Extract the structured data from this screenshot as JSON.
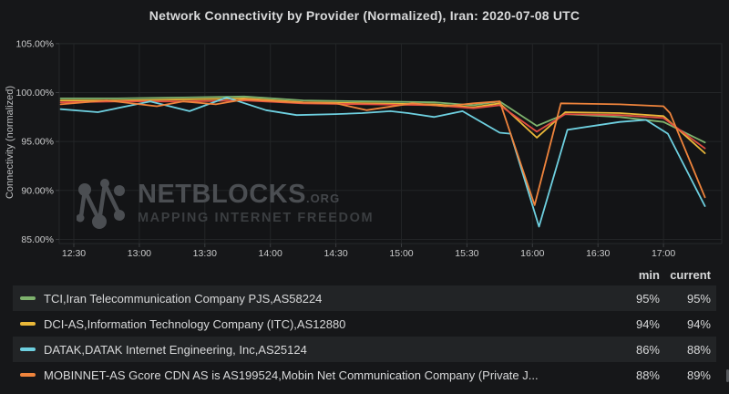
{
  "title": "Network Connectivity by Provider (Normalized), Iran: 2020-07-08 UTC",
  "watermark": {
    "brand": "NETBLOCKS",
    "suffix": ".ORG",
    "tagline": "MAPPING INTERNET FREEDOM",
    "color": "#4b4e52"
  },
  "colors": {
    "legend_header_accent": "#33a2e5",
    "series_green": "#7eb26d",
    "series_yellow": "#eab839",
    "series_red": "#e24d42",
    "series_light_blue": "#6ed0e0",
    "series_orange": "#ef843c"
  },
  "chart_data": {
    "type": "line",
    "title": "Network Connectivity by Provider (Normalized), Iran: 2020-07-08 UTC",
    "xlabel": "",
    "ylabel": "Connectivity (normalized)",
    "ylim": [
      85,
      105
    ],
    "grid": true,
    "legend_position": "bottom-table",
    "x_unit": "minutes since 00:00 UTC",
    "y_ticks": [
      {
        "value": 105,
        "label": "105.00%"
      },
      {
        "value": 100,
        "label": "100.00%"
      },
      {
        "value": 95,
        "label": "95.00%"
      },
      {
        "value": 90,
        "label": "90.00%"
      },
      {
        "value": 85,
        "label": "85.00%"
      }
    ],
    "x_ticks": [
      {
        "value": 750,
        "label": "12:30"
      },
      {
        "value": 780,
        "label": "13:00"
      },
      {
        "value": 810,
        "label": "13:30"
      },
      {
        "value": 840,
        "label": "14:00"
      },
      {
        "value": 870,
        "label": "14:30"
      },
      {
        "value": 900,
        "label": "15:00"
      },
      {
        "value": 930,
        "label": "15:30"
      },
      {
        "value": 960,
        "label": "16:00"
      },
      {
        "value": 990,
        "label": "16:30"
      },
      {
        "value": 1020,
        "label": "17:00"
      }
    ],
    "series": [
      {
        "name": "TCI,Iran Telecommunication Company PJS,AS58224",
        "color": "#7eb26d",
        "points": [
          [
            744,
            99.4
          ],
          [
            770,
            99.4
          ],
          [
            800,
            99.5
          ],
          [
            828,
            99.6
          ],
          [
            855,
            99.2
          ],
          [
            885,
            99.1
          ],
          [
            915,
            99.0
          ],
          [
            933,
            98.7
          ],
          [
            945,
            99.1
          ],
          [
            962,
            96.6
          ],
          [
            975,
            97.8
          ],
          [
            1000,
            97.5
          ],
          [
            1020,
            97.0
          ],
          [
            1039,
            94.9
          ]
        ]
      },
      {
        "name": "DCI-AS,Information Technology Company (ITC),AS12880",
        "color": "#eab839",
        "points": [
          [
            744,
            99.2
          ],
          [
            770,
            99.2
          ],
          [
            800,
            99.3
          ],
          [
            828,
            99.4
          ],
          [
            855,
            99.0
          ],
          [
            885,
            98.9
          ],
          [
            915,
            98.8
          ],
          [
            933,
            98.5
          ],
          [
            945,
            98.9
          ],
          [
            962,
            95.4
          ],
          [
            975,
            98.0
          ],
          [
            1000,
            97.9
          ],
          [
            1020,
            97.6
          ],
          [
            1039,
            93.8
          ]
        ]
      },
      {
        "name": "",
        "color": "#e24d42",
        "points": [
          [
            744,
            99.0
          ],
          [
            770,
            99.1
          ],
          [
            800,
            99.1
          ],
          [
            828,
            99.2
          ],
          [
            855,
            98.9
          ],
          [
            885,
            98.8
          ],
          [
            915,
            98.7
          ],
          [
            933,
            98.4
          ],
          [
            945,
            98.7
          ],
          [
            962,
            96.0
          ],
          [
            975,
            97.8
          ],
          [
            1000,
            97.7
          ],
          [
            1020,
            97.4
          ],
          [
            1039,
            94.3
          ]
        ]
      },
      {
        "name": "DATAK,DATAK Internet Engineering, Inc,AS25124",
        "color": "#6ed0e0",
        "points": [
          [
            744,
            98.3
          ],
          [
            761,
            98.0
          ],
          [
            785,
            99.1
          ],
          [
            803,
            98.1
          ],
          [
            820,
            99.5
          ],
          [
            838,
            98.2
          ],
          [
            852,
            97.7
          ],
          [
            870,
            97.8
          ],
          [
            882,
            97.9
          ],
          [
            895,
            98.1
          ],
          [
            903,
            97.9
          ],
          [
            915,
            97.5
          ],
          [
            928,
            98.1
          ],
          [
            945,
            95.9
          ],
          [
            950,
            95.8
          ],
          [
            963,
            86.3
          ],
          [
            976,
            96.2
          ],
          [
            1000,
            97.0
          ],
          [
            1012,
            97.2
          ],
          [
            1022,
            95.8
          ],
          [
            1039,
            88.4
          ]
        ]
      },
      {
        "name": "MOBINNET-AS Gcore CDN AS is AS199524,Mobin Net Communication Company (Private J...",
        "color": "#ef843c",
        "points": [
          [
            744,
            98.8
          ],
          [
            765,
            99.2
          ],
          [
            788,
            98.6
          ],
          [
            800,
            99.1
          ],
          [
            815,
            98.8
          ],
          [
            828,
            99.3
          ],
          [
            850,
            99.0
          ],
          [
            870,
            98.9
          ],
          [
            884,
            98.2
          ],
          [
            905,
            98.9
          ],
          [
            920,
            98.6
          ],
          [
            933,
            98.9
          ],
          [
            945,
            99.1
          ],
          [
            961,
            88.5
          ],
          [
            973,
            98.9
          ],
          [
            1000,
            98.8
          ],
          [
            1020,
            98.6
          ],
          [
            1023,
            97.9
          ],
          [
            1039,
            89.3
          ]
        ]
      }
    ]
  },
  "legend": {
    "columns": {
      "min": "min",
      "current": "current"
    },
    "rows": [
      {
        "label": "TCI,Iran Telecommunication Company PJS,AS58224",
        "color": "#7eb26d",
        "min": "95%",
        "current": "95%"
      },
      {
        "label": "DCI-AS,Information Technology Company (ITC),AS12880",
        "color": "#eab839",
        "min": "94%",
        "current": "94%"
      },
      {
        "label": "DATAK,DATAK Internet Engineering, Inc,AS25124",
        "color": "#6ed0e0",
        "min": "86%",
        "current": "88%"
      },
      {
        "label": "MOBINNET-AS Gcore CDN AS is AS199524,Mobin Net Communication Company (Private J...",
        "color": "#ef843c",
        "min": "88%",
        "current": "89%"
      }
    ]
  }
}
